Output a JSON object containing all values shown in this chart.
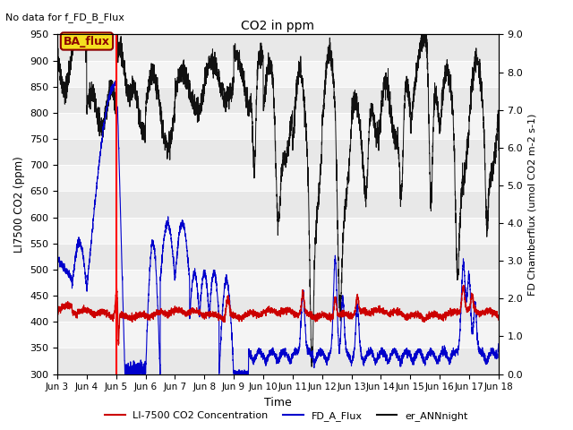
{
  "title": "CO2 in ppm",
  "no_data_text": "No data for f_FD_B_Flux",
  "xlabel": "Time",
  "ylabel_left": "LI7500 CO2 (ppm)",
  "ylabel_right": "FD Chamberflux (umol CO2 m-2 s-1)",
  "ylim_left": [
    300,
    950
  ],
  "ylim_right": [
    0.0,
    9.0
  ],
  "yticks_left": [
    300,
    350,
    400,
    450,
    500,
    550,
    600,
    650,
    700,
    750,
    800,
    850,
    900,
    950
  ],
  "yticks_right": [
    0.0,
    1.0,
    2.0,
    3.0,
    4.0,
    5.0,
    6.0,
    7.0,
    8.0,
    9.0
  ],
  "xtick_labels": [
    "Jun 3",
    "Jun 4",
    "Jun 5",
    "Jun 6",
    "Jun 7",
    "Jun 8",
    "Jun 9",
    "Jun 10",
    "Jun 11",
    "Jun 12",
    "Jun 13",
    "Jun 14",
    "Jun 15",
    "Jun 16",
    "Jun 17",
    "Jun 18"
  ],
  "vline_x": 2.0,
  "vline_color": "red",
  "legend_labels": [
    "LI-7500 CO2 Concentration",
    "FD_A_Flux",
    "er_ANNnight"
  ],
  "legend_colors": [
    "#cc0000",
    "#0000cc",
    "#111111"
  ],
  "red_line_color": "#cc0000",
  "blue_line_color": "#0000cc",
  "black_line_color": "#111111",
  "band_colors": [
    "#e8e8e8",
    "#f4f4f4"
  ],
  "ba_flux_label": "BA_flux"
}
